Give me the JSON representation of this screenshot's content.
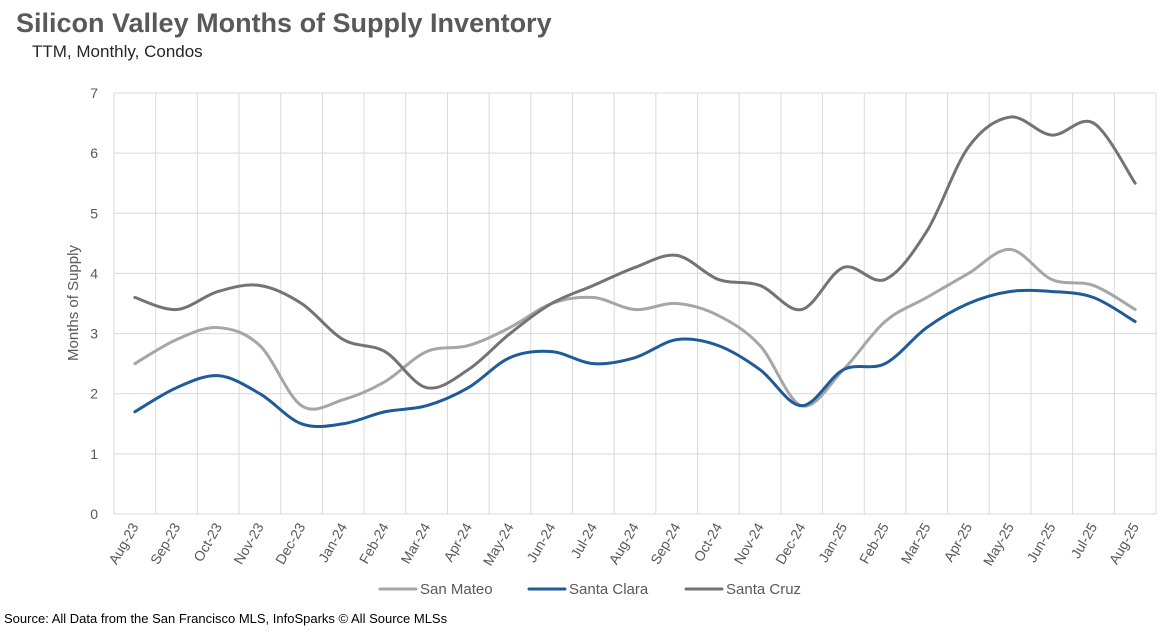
{
  "header": {
    "title": "Silicon Valley Months of Supply Inventory",
    "subtitle": "TTM, Monthly, Condos"
  },
  "footer": {
    "source": "Source: All Data from the San Francisco MLS, InfoSparks © All Source MLSs"
  },
  "chart_data": {
    "type": "line",
    "title": "Silicon Valley Months of Supply Inventory",
    "subtitle": "TTM, Monthly, Condos",
    "xlabel": "",
    "ylabel": "Months of Supply",
    "ylim": [
      0,
      7
    ],
    "yticks": [
      0,
      1,
      2,
      3,
      4,
      5,
      6,
      7
    ],
    "grid": true,
    "legend_position": "bottom",
    "categories": [
      "Aug-23",
      "Sep-23",
      "Oct-23",
      "Nov-23",
      "Dec-23",
      "Jan-24",
      "Feb-24",
      "Mar-24",
      "Apr-24",
      "May-24",
      "Jun-24",
      "Jul-24",
      "Aug-24",
      "Sep-24",
      "Oct-24",
      "Nov-24",
      "Dec-24",
      "Jan-25",
      "Feb-25",
      "Mar-25",
      "Apr-25",
      "May-25",
      "Jun-25",
      "Jul-25",
      "Aug-25"
    ],
    "series": [
      {
        "name": "San Mateo",
        "color": "#a6a6a6",
        "values": [
          2.5,
          2.9,
          3.1,
          2.8,
          1.8,
          1.9,
          2.2,
          2.7,
          2.8,
          3.1,
          3.5,
          3.6,
          3.4,
          3.5,
          3.3,
          2.8,
          1.8,
          2.4,
          3.2,
          3.6,
          4.0,
          4.4,
          3.9,
          3.8,
          3.4
        ]
      },
      {
        "name": "Santa Clara",
        "color": "#1f5b99",
        "values": [
          1.7,
          2.1,
          2.3,
          2.0,
          1.5,
          1.5,
          1.7,
          1.8,
          2.1,
          2.6,
          2.7,
          2.5,
          2.6,
          2.9,
          2.8,
          2.4,
          1.8,
          2.4,
          2.5,
          3.1,
          3.5,
          3.7,
          3.7,
          3.6,
          3.2
        ]
      },
      {
        "name": "Santa Cruz",
        "color": "#737373",
        "values": [
          3.6,
          3.4,
          3.7,
          3.8,
          3.5,
          2.9,
          2.7,
          2.1,
          2.4,
          3.0,
          3.5,
          3.8,
          4.1,
          4.3,
          3.9,
          3.8,
          3.4,
          4.1,
          3.9,
          4.7,
          6.1,
          6.6,
          6.3,
          6.5,
          5.5
        ]
      }
    ]
  }
}
